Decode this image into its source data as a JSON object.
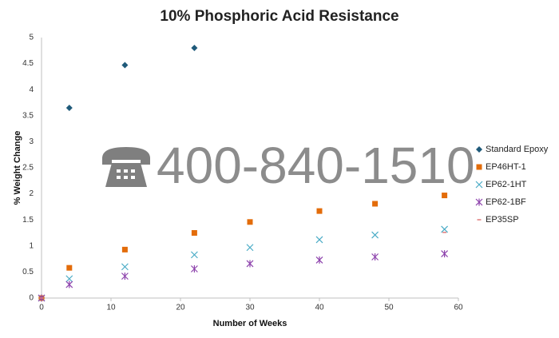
{
  "chart_data": {
    "type": "scatter",
    "title": "10% Phosphoric Acid Resistance",
    "x_label": "Number of Weeks",
    "y_label": "% Weight Change",
    "annotation": "400-840-1510",
    "xlim": [
      0,
      60
    ],
    "xticks": [
      0,
      10,
      20,
      30,
      40,
      50,
      60
    ],
    "ylim": [
      0,
      5
    ],
    "yticks": [
      0,
      0.5,
      1,
      1.5,
      2,
      2.5,
      3,
      3.5,
      4,
      4.5,
      5
    ],
    "grid": false,
    "legend": "right",
    "series": [
      {
        "name": "Standard Epoxy",
        "color": "#1f5a7a",
        "marker": "diamond",
        "x": [
          0,
          4,
          12,
          22
        ],
        "values": [
          0,
          3.65,
          4.47,
          4.8
        ]
      },
      {
        "name": "EP46HT-1",
        "color": "#e36c0a",
        "marker": "square",
        "x": [
          0,
          4,
          12,
          22,
          30,
          40,
          48,
          58
        ],
        "values": [
          0,
          0.58,
          0.93,
          1.25,
          1.46,
          1.67,
          1.81,
          1.97
        ]
      },
      {
        "name": "EP62-1HT",
        "color": "#4bacc6",
        "marker": "x",
        "x": [
          0,
          4,
          12,
          22,
          30,
          40,
          48,
          58
        ],
        "values": [
          0,
          0.37,
          0.6,
          0.83,
          0.97,
          1.12,
          1.21,
          1.32
        ]
      },
      {
        "name": "EP62-1BF",
        "color": "#8e44ad",
        "marker": "star",
        "x": [
          0,
          4,
          12,
          22,
          30,
          40,
          48,
          58
        ],
        "values": [
          0,
          0.26,
          0.42,
          0.56,
          0.66,
          0.73,
          0.79,
          0.85
        ]
      },
      {
        "name": "EP35SP",
        "color": "#e07b7b",
        "marker": "dash",
        "x": [
          0,
          58
        ],
        "values": [
          0,
          1.26
        ]
      }
    ]
  }
}
